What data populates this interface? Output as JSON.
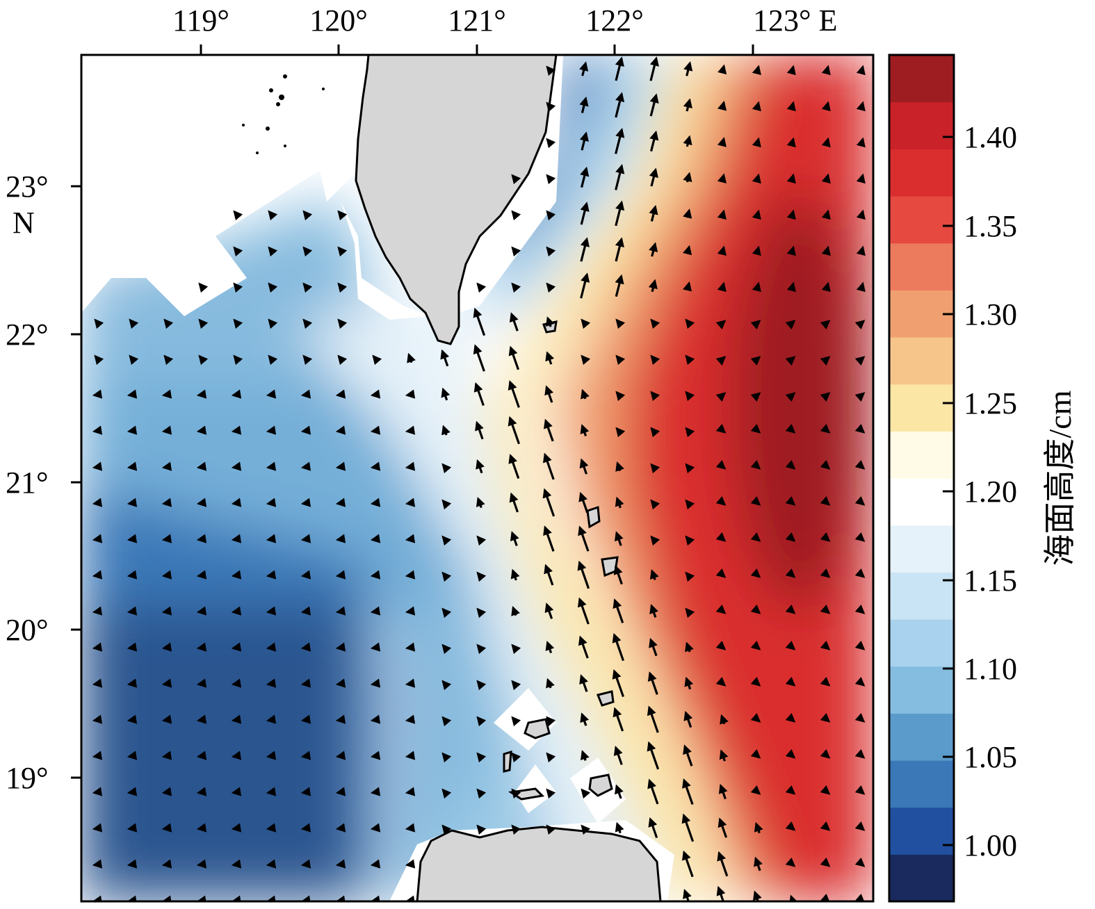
{
  "map": {
    "x_ticks": [
      "119°",
      "120°",
      "121°",
      "122°",
      "123° E"
    ],
    "y_ticks": [
      "23°",
      "22°",
      "21°",
      "20°",
      "19°"
    ],
    "y_axis_unit": "N",
    "colorbar": {
      "title": "海面高度/cm",
      "tick_labels": [
        "1.40",
        "1.35",
        "1.30",
        "1.25",
        "1.20",
        "1.15",
        "1.10",
        "1.05",
        "1.00"
      ],
      "colors": [
        "#1a2a5e",
        "#2150a0",
        "#3a78b8",
        "#5b9bcb",
        "#85bde0",
        "#a8d2ee",
        "#c9e4f4",
        "#e6f2f9",
        "#ffffff",
        "#fffbe6",
        "#fbe6a6",
        "#f6c58a",
        "#f0a070",
        "#ec7a5c",
        "#e5493f",
        "#da2e2e",
        "#c92229",
        "#9e1d20"
      ]
    },
    "colors": {
      "land": "#d6d6d6",
      "coast": "#000000",
      "arrow": "#000000"
    }
  }
}
